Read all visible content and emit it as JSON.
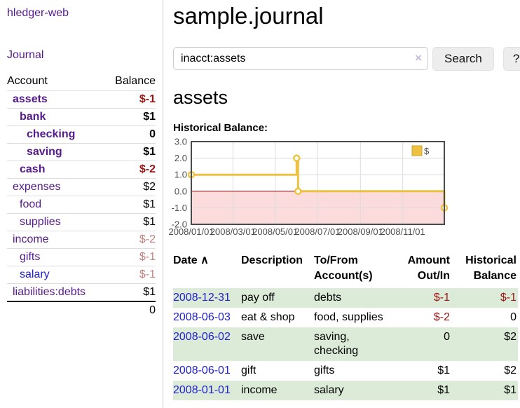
{
  "colors": {
    "link_purple": "#551a8b",
    "link_blue": "#2121cc",
    "negative_strong": "#9e1212",
    "negative_soft": "#c5807e",
    "row_green": "#dcebd8",
    "series_yellow": "#edc240",
    "chart_negative_region": "#fbdbdb",
    "zero_line": "#8b0000",
    "button_bg": "#ededed",
    "border_gray": "#cccccc"
  },
  "app": {
    "brand": "hledger-web",
    "nav_journal": "Journal"
  },
  "sidebar": {
    "header": {
      "account": "Account",
      "balance": "Balance"
    },
    "accounts": [
      {
        "name": "assets",
        "depth": 1,
        "bold": true,
        "blue": false,
        "balance": "$-1",
        "balance_style": "neg"
      },
      {
        "name": "bank",
        "depth": 2,
        "bold": true,
        "blue": false,
        "balance": "$1",
        "balance_style": "pos"
      },
      {
        "name": "checking",
        "depth": 3,
        "bold": true,
        "blue": false,
        "balance": "0",
        "balance_style": "pos"
      },
      {
        "name": "saving",
        "depth": 3,
        "bold": true,
        "blue": false,
        "balance": "$1",
        "balance_style": "pos"
      },
      {
        "name": "cash",
        "depth": 2,
        "bold": true,
        "blue": false,
        "balance": "$-2",
        "balance_style": "neg"
      },
      {
        "name": "expenses",
        "depth": 1,
        "bold": false,
        "blue": false,
        "balance": "$2",
        "balance_style": "pos"
      },
      {
        "name": "food",
        "depth": 2,
        "bold": false,
        "blue": false,
        "balance": "$1",
        "balance_style": "pos"
      },
      {
        "name": "supplies",
        "depth": 2,
        "bold": false,
        "blue": false,
        "balance": "$1",
        "balance_style": "pos"
      },
      {
        "name": "income",
        "depth": 1,
        "bold": false,
        "blue": false,
        "balance": "$-2",
        "balance_style": "negsoft"
      },
      {
        "name": "gifts",
        "depth": 2,
        "bold": false,
        "blue": false,
        "balance": "$-1",
        "balance_style": "negsoft"
      },
      {
        "name": "salary",
        "depth": 2,
        "bold": false,
        "blue": true,
        "balance": "$-1",
        "balance_style": "negsoft"
      },
      {
        "name": "liabilities:debts",
        "depth": 1,
        "bold": false,
        "blue": false,
        "balance": "$1",
        "balance_style": "pos"
      }
    ],
    "total": "0"
  },
  "header": {
    "title": "sample.journal"
  },
  "search": {
    "value": "inacct:assets",
    "clear_icon": "×",
    "button_label": "Search",
    "help_label": "?"
  },
  "account_page": {
    "heading": "assets",
    "chart_heading": "Historical Balance:"
  },
  "chart_data": {
    "type": "line",
    "step": true,
    "title": "Historical Balance:",
    "x_range": [
      "2008/01/01",
      "2008/12/31"
    ],
    "ylim": [
      -2,
      3
    ],
    "yticks": [
      3,
      2,
      1,
      0,
      -1,
      -2
    ],
    "xticks": [
      "2008/01/01",
      "2008/03/01",
      "2008/05/01",
      "2008/07/01",
      "2008/09/01",
      "2008/11/01"
    ],
    "series": [
      {
        "name": "$",
        "color": "#edc240",
        "points": [
          {
            "x": "2008/01/01",
            "y": 1
          },
          {
            "x": "2008/06/01",
            "y": 2
          },
          {
            "x": "2008/06/03",
            "y": 0
          },
          {
            "x": "2008/12/31",
            "y": -1
          }
        ]
      }
    ],
    "legend_position": "top-right",
    "grid": true,
    "negative_region_fill": "#fbdbdb",
    "zero_line_color": "#8b0000"
  },
  "register": {
    "columns": [
      "Date",
      "Description",
      "To/From Account(s)",
      "Amount Out/In",
      "Historical Balance"
    ],
    "sort_indicator": "∧",
    "rows": [
      {
        "date": "2008-12-31",
        "description": "pay off",
        "accounts": "debts",
        "amount": "$-1",
        "amount_negative": true,
        "balance": "$-1",
        "balance_negative": true
      },
      {
        "date": "2008-06-03",
        "description": "eat & shop",
        "accounts": "food, supplies",
        "amount": "$-2",
        "amount_negative": true,
        "balance": "0",
        "balance_negative": false
      },
      {
        "date": "2008-06-02",
        "description": "save",
        "accounts": "saving, checking",
        "amount": "0",
        "amount_negative": false,
        "balance": "$2",
        "balance_negative": false
      },
      {
        "date": "2008-06-01",
        "description": "gift",
        "accounts": "gifts",
        "amount": "$1",
        "amount_negative": false,
        "balance": "$2",
        "balance_negative": false
      },
      {
        "date": "2008-01-01",
        "description": "income",
        "accounts": "salary",
        "amount": "$1",
        "amount_negative": false,
        "balance": "$1",
        "balance_negative": false
      }
    ]
  }
}
